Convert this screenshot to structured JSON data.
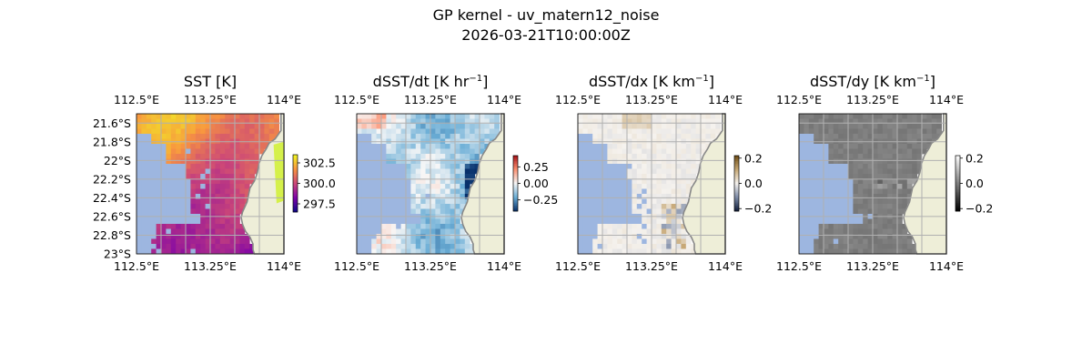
{
  "figure": {
    "title_line1": "GP kernel - uv_matern12_noise",
    "title_line2": "2026-03-21T10:00:00Z"
  },
  "chart_data": [
    {
      "type": "heatmap",
      "title": "SST [K]",
      "title_main": "SST [K]",
      "title_sup": "",
      "title_tail": "",
      "x_ticks_top": [
        "112.5°E",
        "113.25°E",
        "114°E"
      ],
      "x_ticks_bottom": [
        "112.5°E",
        "113.25°E",
        "114°E"
      ],
      "y_ticks": [
        "21.6°S",
        "21.8°S",
        "22°S",
        "22.2°S",
        "22.4°S",
        "22.6°S",
        "22.8°S",
        "23°S"
      ],
      "xlim": [
        112.5,
        114.0
      ],
      "ylim": [
        -23.0,
        -21.5
      ],
      "colorbar": {
        "ticks": [
          "302.5",
          "300.0",
          "297.5"
        ],
        "values": [
          302.5,
          300.0,
          297.5
        ],
        "range": [
          296.5,
          303.5
        ],
        "colors": [
          "#0d0887",
          "#7e03a8",
          "#cc4778",
          "#f89540",
          "#f0f921"
        ]
      },
      "land_color": "#eeeed8",
      "missing_color": "#9db6e0"
    },
    {
      "type": "heatmap",
      "title": "dSST/dt [K hr-1]",
      "title_main": "dSST/dt [K hr",
      "title_sup": "−1",
      "title_tail": "]",
      "x_ticks_top": [
        "112.5°E",
        "113.25°E",
        "114°E"
      ],
      "x_ticks_bottom": [
        "112.5°E",
        "113.25°E",
        "114°E"
      ],
      "y_ticks": [],
      "xlim": [
        112.5,
        114.0
      ],
      "ylim": [
        -23.0,
        -21.5
      ],
      "colorbar": {
        "ticks": [
          "0.25",
          "0.00",
          "−0.25"
        ],
        "values": [
          0.25,
          0.0,
          -0.25
        ],
        "range": [
          -0.42,
          0.42
        ],
        "colors": [
          "#08306b",
          "#6baed6",
          "#f7f7f7",
          "#fc9272",
          "#a50f15"
        ]
      },
      "land_color": "#eeeed8",
      "missing_color": "#9db6e0"
    },
    {
      "type": "heatmap",
      "title": "dSST/dx [K km-1]",
      "title_main": "dSST/dx [K km",
      "title_sup": "−1",
      "title_tail": "]",
      "x_ticks_top": [
        "112.5°E",
        "113.25°E",
        "114°E"
      ],
      "x_ticks_bottom": [
        "112.5°E",
        "113.25°E",
        "114°E"
      ],
      "y_ticks": [],
      "xlim": [
        112.5,
        114.0
      ],
      "ylim": [
        -23.0,
        -21.5
      ],
      "colorbar": {
        "ticks": [
          "0.2",
          "0.0",
          "−0.2"
        ],
        "values": [
          0.2,
          0.0,
          -0.2
        ],
        "range": [
          -0.22,
          0.22
        ],
        "colors": [
          "#111d3a",
          "#7c8aa6",
          "#f5f2ee",
          "#c6a774",
          "#6b4a12"
        ]
      },
      "land_color": "#eeeed8",
      "missing_color": "#9db6e0"
    },
    {
      "type": "heatmap",
      "title": "dSST/dy [K km-1]",
      "title_main": "dSST/dy [K km",
      "title_sup": "−1",
      "title_tail": "]",
      "x_ticks_top": [
        "112.5°E",
        "113.25°E",
        "114°E"
      ],
      "x_ticks_bottom": [
        "112.5°E",
        "113.25°E",
        "114°E"
      ],
      "y_ticks": [],
      "xlim": [
        112.5,
        114.0
      ],
      "ylim": [
        -23.0,
        -21.5
      ],
      "colorbar": {
        "ticks": [
          "0.2",
          "0.0",
          "−0.2"
        ],
        "values": [
          0.2,
          0.0,
          -0.2
        ],
        "range": [
          -0.22,
          0.22
        ],
        "colors": [
          "#000000",
          "#7d7d7d",
          "#ffffff"
        ]
      },
      "land_color": "#eeeed8",
      "missing_color": "#9db6e0"
    }
  ]
}
